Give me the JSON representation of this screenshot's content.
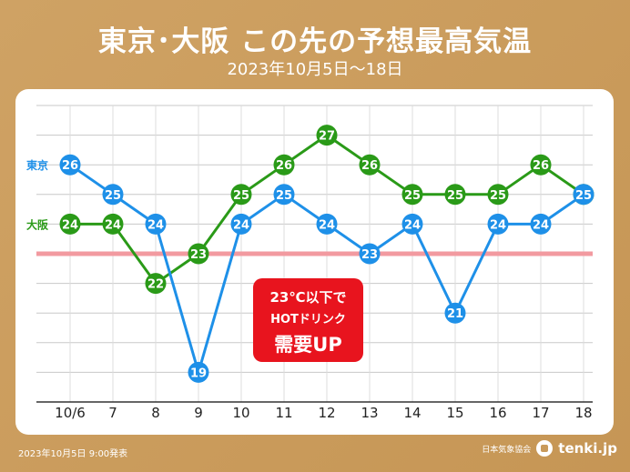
{
  "title": "東京･大阪 この先の予想最高気温",
  "subtitle": "2023年10月5日〜18日",
  "annotation": {
    "line1": "23℃以下で",
    "line2": "HOTドリンク",
    "line3": "需要UP"
  },
  "footer": {
    "date": "2023年10月5日 9:00発表",
    "org": "日本気象協会",
    "site": "tenki.jp"
  },
  "colors": {
    "tokyo": "#1e90e8",
    "osaka": "#2a9a18",
    "threshold": "#f29aa0",
    "annotation_bg": "#e8141e"
  },
  "chart_data": {
    "type": "line",
    "categories": [
      "10/6",
      "7",
      "8",
      "9",
      "10",
      "11",
      "12",
      "13",
      "14",
      "15",
      "16",
      "17",
      "18"
    ],
    "series": [
      {
        "name": "東京",
        "values": [
          26,
          25,
          24,
          19,
          24,
          25,
          24,
          23,
          24,
          21,
          24,
          24,
          25
        ]
      },
      {
        "name": "大阪",
        "values": [
          24,
          24,
          22,
          23,
          25,
          26,
          27,
          26,
          25,
          25,
          25,
          26,
          25
        ]
      }
    ],
    "threshold": 23,
    "ylim": [
      18,
      28
    ],
    "grid": true,
    "legend": "left, inline labels"
  }
}
